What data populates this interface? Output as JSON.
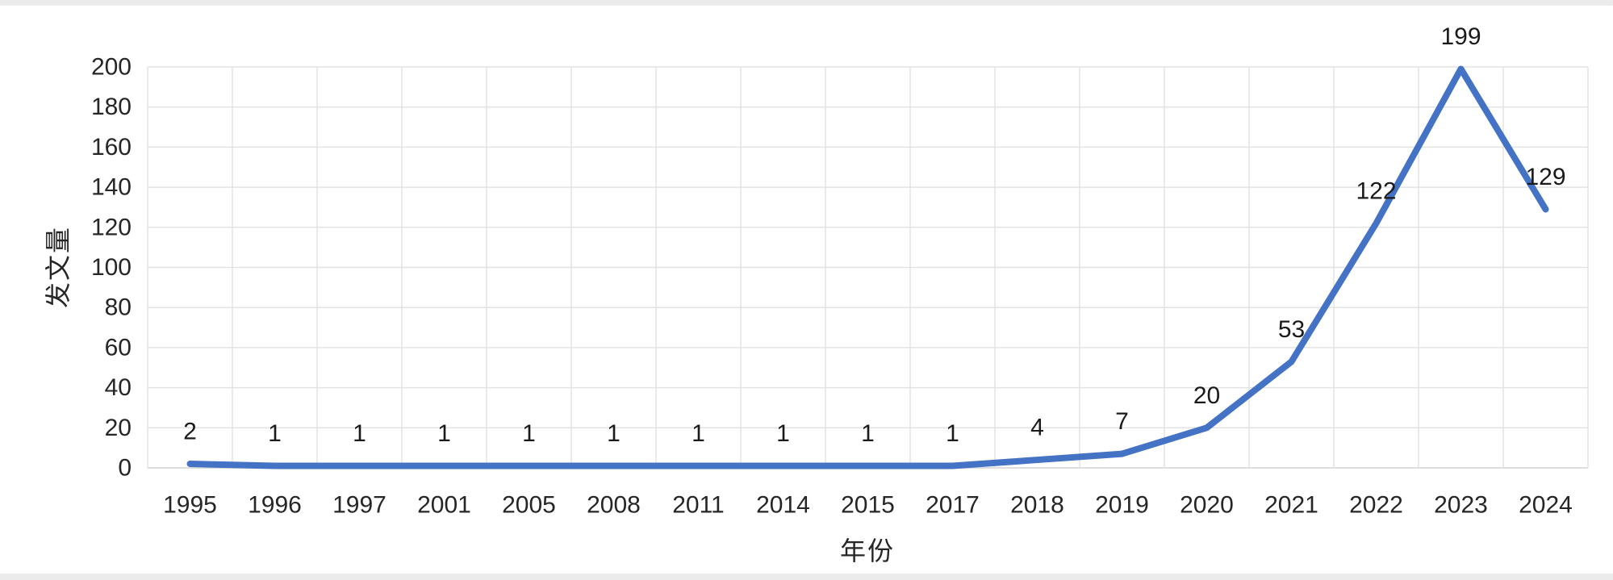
{
  "page": {
    "edge_strip_color": "#ebebeb",
    "background_color": "#ffffff"
  },
  "chart_data": {
    "type": "line",
    "title": "",
    "categories": [
      "1995",
      "1996",
      "1997",
      "2001",
      "2005",
      "2008",
      "2011",
      "2014",
      "2015",
      "2017",
      "2018",
      "2019",
      "2020",
      "2021",
      "2022",
      "2023",
      "2024"
    ],
    "values": [
      2,
      1,
      1,
      1,
      1,
      1,
      1,
      1,
      1,
      1,
      4,
      7,
      20,
      53,
      122,
      199,
      129
    ],
    "data_labels": [
      "2",
      "1",
      "1",
      "1",
      "1",
      "1",
      "1",
      "1",
      "1",
      "1",
      "4",
      "7",
      "20",
      "53",
      "122",
      "199",
      "129"
    ],
    "xlabel": "年份",
    "ylabel": "发文量",
    "ylim": [
      0,
      200
    ],
    "yticks": [
      0,
      20,
      40,
      60,
      80,
      100,
      120,
      140,
      160,
      180,
      200
    ],
    "grid": "both",
    "legend": "none",
    "line_color": "#4472C4",
    "gridline_color": "#e3e3e3",
    "axis_line_color": "#d2d2d2",
    "tick_text_color": "#262626",
    "data_label_color": "#1a1a1a"
  }
}
